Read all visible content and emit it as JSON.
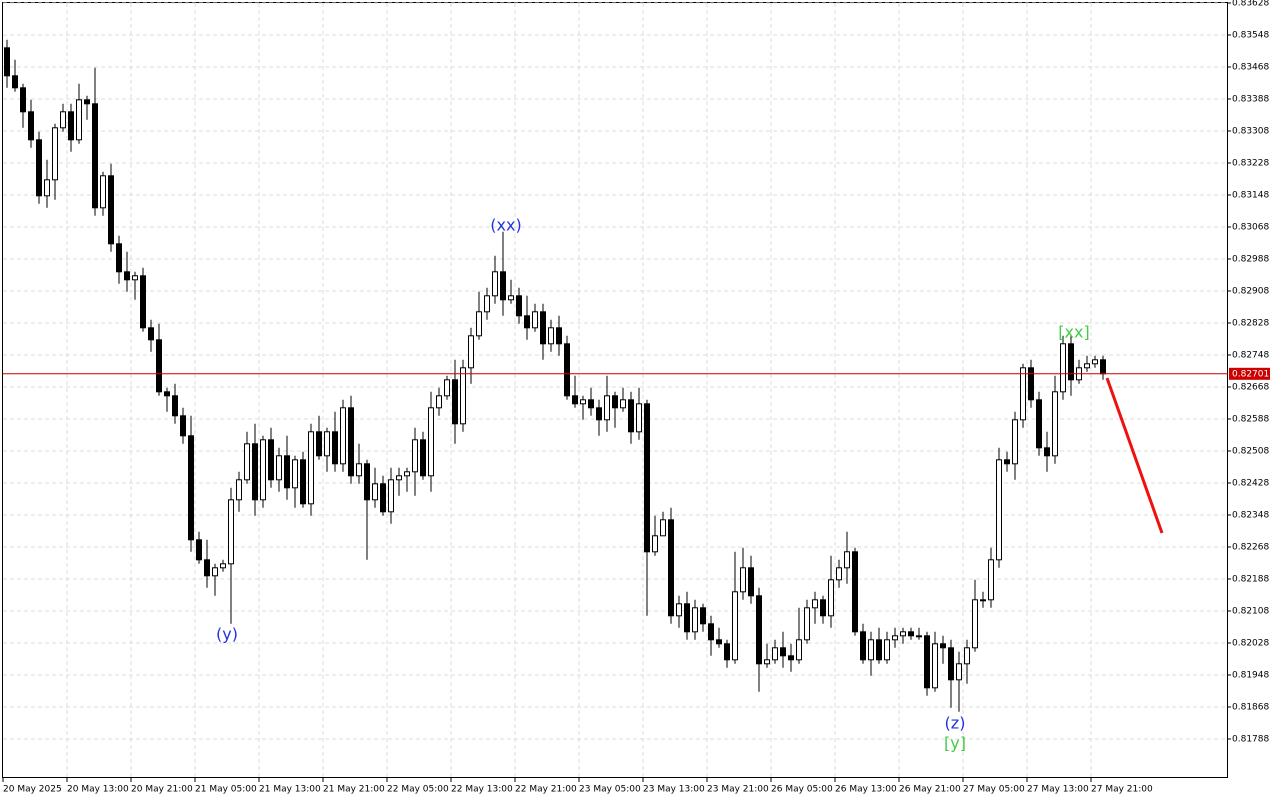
{
  "chart_data": {
    "type": "candlestick",
    "categories": [
      "20 May 2025",
      null,
      null,
      null,
      null,
      null,
      null,
      null,
      "20 May 13:00",
      null,
      null,
      null,
      null,
      null,
      null,
      null,
      "20 May 21:00",
      null,
      null,
      null,
      null,
      null,
      null,
      null,
      "21 May 05:00",
      null,
      null,
      null,
      null,
      null,
      null,
      null,
      "21 May 13:00",
      null,
      null,
      null,
      null,
      null,
      null,
      null,
      "21 May 21:00",
      null,
      null,
      null,
      null,
      null,
      null,
      null,
      "22 May 05:00",
      null,
      null,
      null,
      null,
      null,
      null,
      null,
      "22 May 13:00",
      null,
      null,
      null,
      null,
      null,
      null,
      null,
      "22 May 21:00",
      null,
      null,
      null,
      null,
      null,
      null,
      null,
      "23 May 05:00",
      null,
      null,
      null,
      null,
      null,
      null,
      null,
      "23 May 13:00",
      null,
      null,
      null,
      null,
      null,
      null,
      null,
      "23 May 21:00",
      null,
      null,
      null,
      null,
      null,
      null,
      null,
      "26 May 05:00",
      null,
      null,
      null,
      null,
      null,
      null,
      null,
      "26 May 13:00",
      null,
      null,
      null,
      null,
      null,
      null,
      null,
      "26 May 21:00",
      null,
      null,
      null,
      null,
      null,
      null,
      null,
      "27 May 05:00",
      null,
      null,
      null,
      null,
      null,
      null,
      null,
      "27 May 13:00",
      null,
      null,
      null,
      null,
      null,
      null,
      null,
      "27 May 21:00",
      null
    ],
    "open": [
      0.83516,
      0.83446,
      0.83416,
      0.83356,
      0.83286,
      0.83146,
      0.83186,
      0.83316,
      0.83356,
      0.83286,
      0.83386,
      0.83376,
      0.83116,
      0.83196,
      0.83026,
      0.82956,
      0.82936,
      0.82946,
      0.82816,
      0.82786,
      0.82656,
      0.82646,
      0.82596,
      0.82546,
      0.82286,
      0.82236,
      0.82196,
      0.82216,
      0.82226,
      0.82386,
      0.82436,
      0.82526,
      0.82386,
      0.82536,
      0.82436,
      0.82496,
      0.82416,
      0.82486,
      0.82376,
      0.82556,
      0.82496,
      0.82556,
      0.82476,
      0.82616,
      0.82446,
      0.82476,
      0.82386,
      0.82426,
      0.82356,
      0.82436,
      0.82446,
      0.82456,
      0.82536,
      0.82446,
      0.82616,
      0.82646,
      0.82686,
      0.82576,
      0.82716,
      0.82796,
      0.82856,
      0.82896,
      0.82956,
      0.82886,
      0.82896,
      0.82846,
      0.82816,
      0.82856,
      0.82776,
      0.82816,
      0.82776,
      0.82646,
      0.82626,
      0.82636,
      0.82616,
      0.82586,
      0.82646,
      0.82616,
      0.82636,
      0.82556,
      0.82626,
      0.82256,
      0.82296,
      0.82336,
      0.82096,
      0.82126,
      0.82056,
      0.82116,
      0.82076,
      0.82036,
      0.82026,
      0.81986,
      0.82156,
      0.82216,
      0.82146,
      0.81976,
      0.81986,
      0.82016,
      0.81996,
      0.81986,
      0.82036,
      0.82116,
      0.82136,
      0.82096,
      0.82186,
      0.82216,
      0.82256,
      0.82056,
      0.81986,
      0.82036,
      0.81986,
      0.82036,
      0.82046,
      0.82056,
      0.82046,
      0.82046,
      0.81916,
      0.82026,
      0.82016,
      0.81936,
      0.81976,
      0.82016,
      0.82136,
      0.82136,
      0.82236,
      0.82486,
      0.82476,
      0.82586,
      0.82716,
      0.82636,
      0.82516,
      0.82496,
      0.82656,
      0.82776,
      0.82686,
      0.82716,
      0.82726,
      0.82736
    ],
    "high": [
      0.83536,
      0.83486,
      0.83426,
      0.83386,
      0.83306,
      0.83236,
      0.83326,
      0.83376,
      0.83376,
      0.83426,
      0.83396,
      0.83466,
      0.83206,
      0.83226,
      0.83046,
      0.83006,
      0.82956,
      0.82966,
      0.82836,
      0.82826,
      0.82666,
      0.82676,
      0.82616,
      0.82596,
      0.82306,
      0.82286,
      0.82226,
      0.82236,
      0.82416,
      0.82456,
      0.82556,
      0.82576,
      0.82546,
      0.82566,
      0.82516,
      0.82546,
      0.82496,
      0.82506,
      0.82576,
      0.82596,
      0.82566,
      0.82606,
      0.82636,
      0.82646,
      0.82526,
      0.82486,
      0.82466,
      0.82446,
      0.82466,
      0.82466,
      0.82466,
      0.82566,
      0.82556,
      0.82656,
      0.82666,
      0.82696,
      0.82736,
      0.82736,
      0.82816,
      0.82906,
      0.82916,
      0.82996,
      0.83056,
      0.82936,
      0.82916,
      0.82896,
      0.82876,
      0.82876,
      0.82836,
      0.82846,
      0.82796,
      0.82696,
      0.82646,
      0.82666,
      0.82636,
      0.82696,
      0.82656,
      0.82666,
      0.82656,
      0.82666,
      0.82636,
      0.82346,
      0.82356,
      0.82366,
      0.82146,
      0.82156,
      0.82136,
      0.82126,
      0.82096,
      0.82066,
      0.82036,
      0.82256,
      0.82266,
      0.82246,
      0.82166,
      0.82026,
      0.82036,
      0.82056,
      0.82026,
      0.82116,
      0.82136,
      0.82156,
      0.82146,
      0.82246,
      0.82236,
      0.82306,
      0.82266,
      0.82076,
      0.82056,
      0.82066,
      0.82056,
      0.82066,
      0.82066,
      0.82066,
      0.82066,
      0.82056,
      0.82056,
      0.82046,
      0.82036,
      0.82006,
      0.82036,
      0.82186,
      0.82156,
      0.82266,
      0.82516,
      0.82506,
      0.82606,
      0.82726,
      0.82736,
      0.82656,
      0.82556,
      0.82696,
      0.82796,
      0.82796,
      0.82736,
      0.82746,
      0.82746,
      0.82746
    ],
    "low": [
      0.83416,
      0.83406,
      0.83316,
      0.83266,
      0.83126,
      0.83116,
      0.83136,
      0.83306,
      0.83256,
      0.83276,
      0.83336,
      0.83096,
      0.83096,
      0.83006,
      0.82926,
      0.82906,
      0.82886,
      0.82806,
      0.82756,
      0.82646,
      0.82606,
      0.82576,
      0.82526,
      0.82256,
      0.82226,
      0.82166,
      0.82146,
      0.82206,
      0.82076,
      0.82356,
      0.82426,
      0.82346,
      0.82366,
      0.82416,
      0.82406,
      0.82386,
      0.82366,
      0.82366,
      0.82346,
      0.82486,
      0.82456,
      0.82456,
      0.82456,
      0.82426,
      0.82426,
      0.82236,
      0.82366,
      0.82346,
      0.82326,
      0.82396,
      0.82406,
      0.82396,
      0.82436,
      0.82406,
      0.82596,
      0.82636,
      0.82526,
      0.82556,
      0.82676,
      0.82786,
      0.82836,
      0.82876,
      0.82846,
      0.82876,
      0.82826,
      0.82786,
      0.82806,
      0.82736,
      0.82756,
      0.82746,
      0.82636,
      0.82616,
      0.82586,
      0.82596,
      0.82546,
      0.82556,
      0.82566,
      0.82606,
      0.82526,
      0.82536,
      0.82096,
      0.82246,
      0.82296,
      0.82076,
      0.82066,
      0.82036,
      0.82036,
      0.82056,
      0.81996,
      0.82016,
      0.81966,
      0.81976,
      0.82136,
      0.82126,
      0.81906,
      0.81966,
      0.81976,
      0.81966,
      0.81956,
      0.81976,
      0.82026,
      0.82076,
      0.82076,
      0.82066,
      0.82166,
      0.82176,
      0.82046,
      0.81976,
      0.81946,
      0.81976,
      0.81976,
      0.82016,
      0.82026,
      0.82036,
      0.82036,
      0.81896,
      0.81906,
      0.81976,
      0.81866,
      0.81856,
      0.81926,
      0.82006,
      0.82116,
      0.82116,
      0.82216,
      0.82456,
      0.82436,
      0.82566,
      0.82616,
      0.82496,
      0.82456,
      0.82476,
      0.82636,
      0.82646,
      0.82676,
      0.82706,
      0.82716,
      0.82686
    ],
    "close": [
      0.83446,
      0.83416,
      0.83356,
      0.83286,
      0.83146,
      0.83186,
      0.83316,
      0.83356,
      0.83286,
      0.83386,
      0.83376,
      0.83116,
      0.83196,
      0.83026,
      0.82956,
      0.82936,
      0.82946,
      0.82816,
      0.82786,
      0.82656,
      0.82646,
      0.82596,
      0.82546,
      0.82286,
      0.82236,
      0.82196,
      0.82216,
      0.82226,
      0.82386,
      0.82436,
      0.82526,
      0.82386,
      0.82536,
      0.82436,
      0.82496,
      0.82416,
      0.82486,
      0.82376,
      0.82556,
      0.82496,
      0.82556,
      0.82476,
      0.82616,
      0.82446,
      0.82476,
      0.82386,
      0.82426,
      0.82356,
      0.82436,
      0.82446,
      0.82456,
      0.82536,
      0.82446,
      0.82616,
      0.82646,
      0.82686,
      0.82576,
      0.82716,
      0.82796,
      0.82856,
      0.82896,
      0.82956,
      0.82886,
      0.82896,
      0.82846,
      0.82816,
      0.82856,
      0.82776,
      0.82816,
      0.82776,
      0.82646,
      0.82626,
      0.82636,
      0.82616,
      0.82586,
      0.82646,
      0.82616,
      0.82636,
      0.82556,
      0.82626,
      0.82256,
      0.82296,
      0.82336,
      0.82096,
      0.82126,
      0.82056,
      0.82116,
      0.82076,
      0.82036,
      0.82026,
      0.81986,
      0.82156,
      0.82216,
      0.82146,
      0.81976,
      0.81986,
      0.82016,
      0.81996,
      0.81986,
      0.82036,
      0.82116,
      0.82136,
      0.82096,
      0.82186,
      0.82216,
      0.82256,
      0.82056,
      0.81986,
      0.82036,
      0.81986,
      0.82036,
      0.82046,
      0.82056,
      0.82046,
      0.82046,
      0.81916,
      0.82026,
      0.82016,
      0.81936,
      0.81976,
      0.82016,
      0.82136,
      0.82136,
      0.82236,
      0.82486,
      0.82476,
      0.82586,
      0.82716,
      0.82636,
      0.82516,
      0.82496,
      0.82656,
      0.82776,
      0.82686,
      0.82716,
      0.82726,
      0.82736,
      0.82701
    ],
    "up_color": "#ffffff",
    "down_color": "#000000",
    "ylim": [
      0.816905,
      0.83628
    ],
    "yticks": [
      0.83628,
      0.83548,
      0.83468,
      0.83388,
      0.83308,
      0.83228,
      0.83148,
      0.83068,
      0.82988,
      0.82908,
      0.82828,
      0.82748,
      0.82668,
      0.82588,
      0.82508,
      0.82428,
      0.82348,
      0.82268,
      0.82188,
      0.82108,
      0.82028,
      0.81948,
      0.81868,
      0.81788
    ],
    "grid": true,
    "current_price": 0.82701,
    "current_price_color": "#cc0000",
    "annotations": [
      {
        "text": "(xx)",
        "color": "#2233dd"
      },
      {
        "text": "(y)",
        "color": "#2233dd"
      },
      {
        "text": "[xx]",
        "color": "#44cc44"
      },
      {
        "text": "(z)",
        "color": "#2233dd"
      },
      {
        "text": "[y]",
        "color": "#44cc44"
      }
    ]
  }
}
